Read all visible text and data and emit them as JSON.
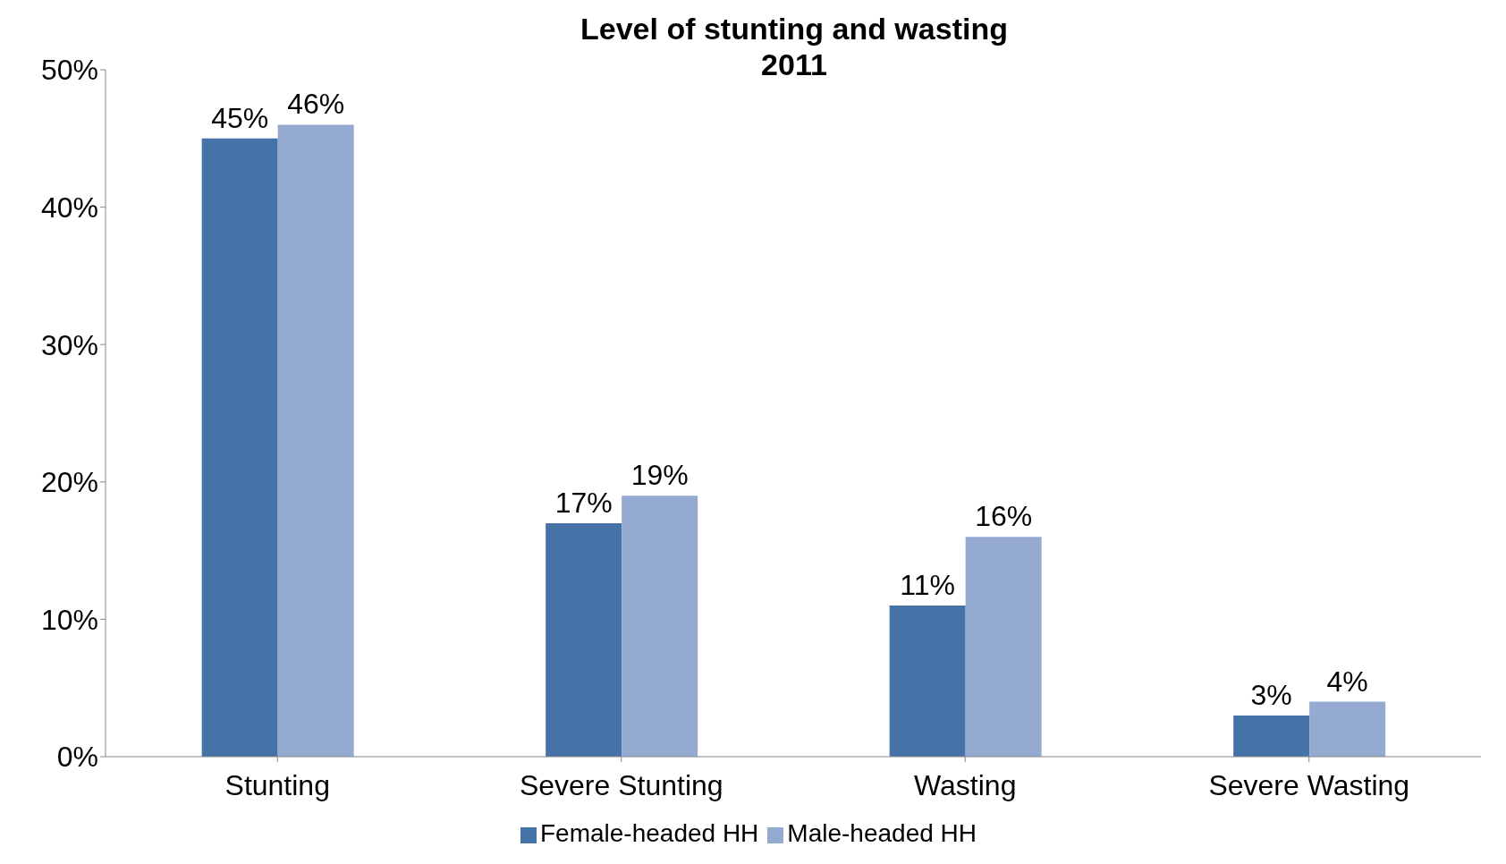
{
  "chart_data": {
    "type": "bar",
    "title": "Level of stunting and wasting\n2011",
    "categories": [
      "Stunting",
      "Severe Stunting",
      "Wasting",
      "Severe Wasting"
    ],
    "series": [
      {
        "name": "Female-headed HH",
        "color": "#4673a7",
        "values": [
          45,
          17,
          11,
          3
        ],
        "value_labels": [
          "45%",
          "17%",
          "11%",
          "3%"
        ]
      },
      {
        "name": "Male-headed HH",
        "color": "#95aad1",
        "values": [
          46,
          19,
          16,
          4
        ],
        "value_labels": [
          "46%",
          "19%",
          "16%",
          "4%"
        ]
      }
    ],
    "ylim": [
      0,
      50
    ],
    "yticks": [
      {
        "value": 0,
        "label": "0%"
      },
      {
        "value": 10,
        "label": "10%"
      },
      {
        "value": 20,
        "label": "20%"
      },
      {
        "value": 30,
        "label": "30%"
      },
      {
        "value": 40,
        "label": "40%"
      },
      {
        "value": 50,
        "label": "50%"
      }
    ],
    "grid": false,
    "legend": "bottom"
  }
}
